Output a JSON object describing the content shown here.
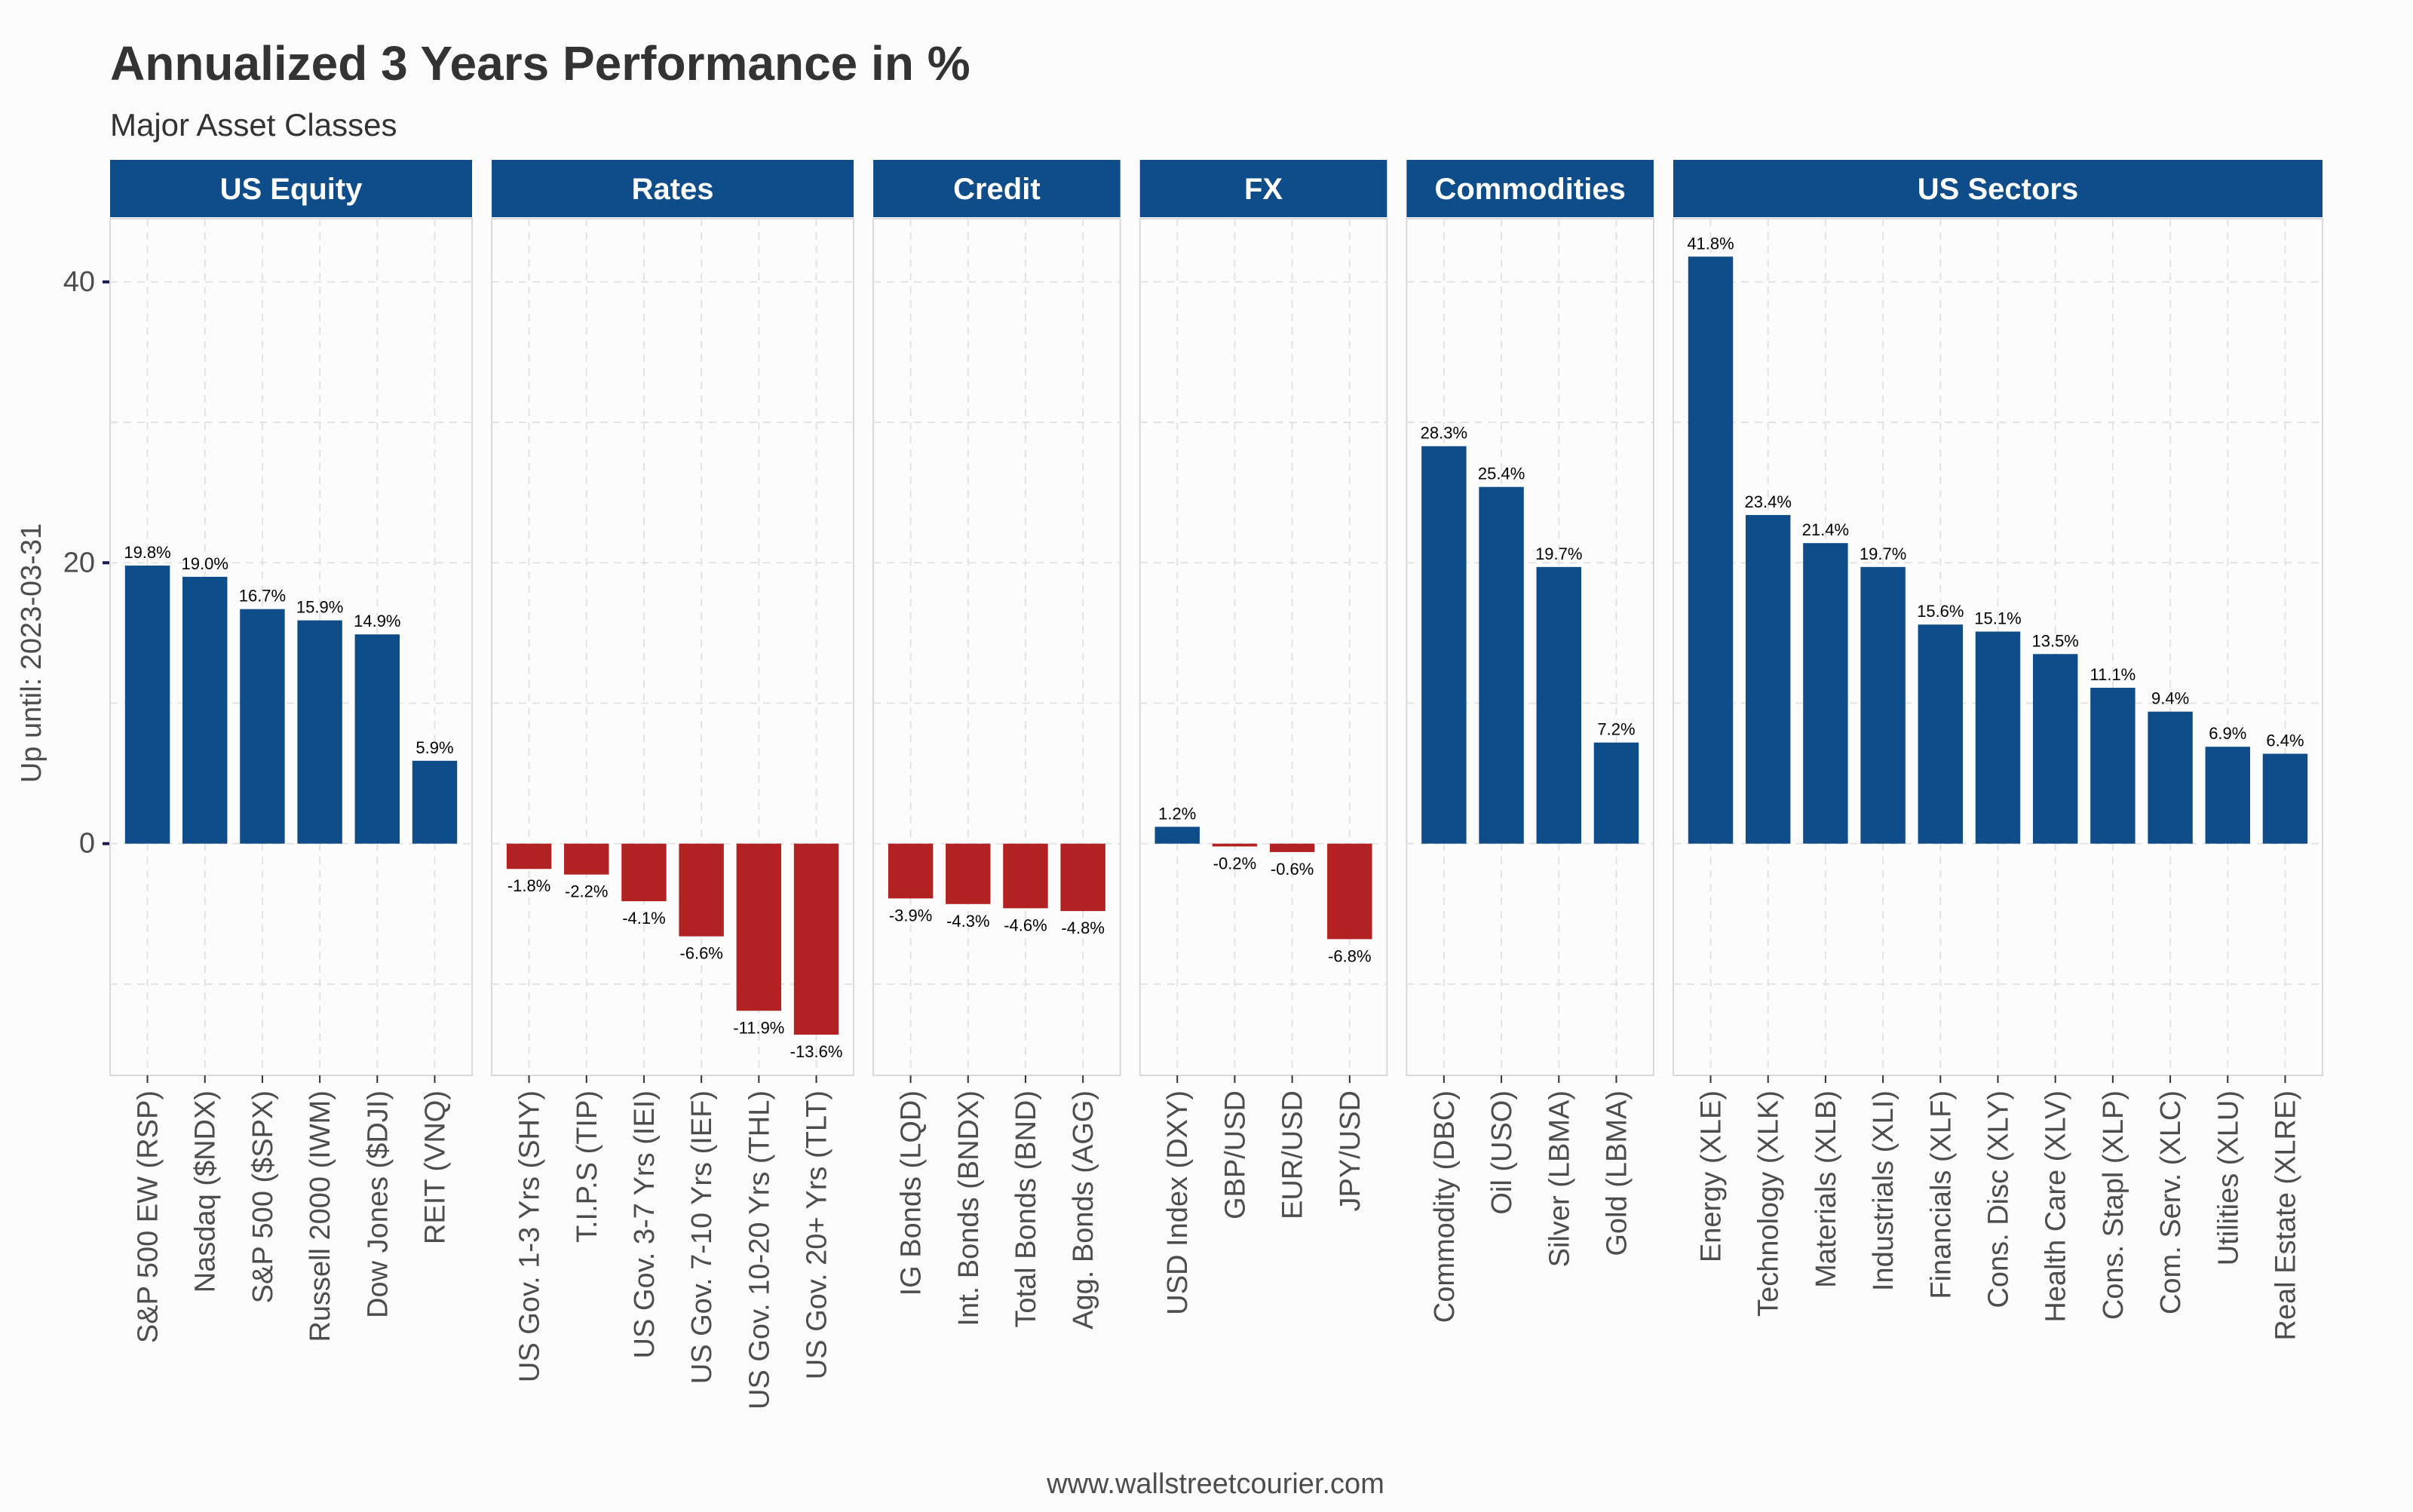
{
  "colors": {
    "positive": "#0f4c8a",
    "negative": "#b22222",
    "strip": "#0f4c8a",
    "text": "#333333",
    "grid": "#e3e3e3",
    "background": "#fcfcfc"
  },
  "footer": {
    "source": "www.wallstreetcourier.com"
  },
  "chart_data": {
    "type": "bar",
    "title": "Annualized 3 Years Performance in %",
    "subtitle": "Major Asset Classes",
    "ylabel": "Up until: 2023-03-31",
    "xlabel": "",
    "ylim": [
      -16.5,
      44.5
    ],
    "yticks": [
      0,
      20,
      40
    ],
    "grid": true,
    "value_suffix": "%",
    "facets": [
      {
        "name": "US Equity",
        "categories": [
          "S&P 500 EW (RSP)",
          "Nasdaq ($NDX)",
          "S&P 500 ($SPX)",
          "Russell 2000 (IWM)",
          "Dow Jones ($DJI)",
          "REIT (VNQ)"
        ],
        "values": [
          19.8,
          19.0,
          16.7,
          15.9,
          14.9,
          5.9
        ]
      },
      {
        "name": "Rates",
        "categories": [
          "US Gov. 1-3 Yrs (SHY)",
          "T.I.P.S (TIP)",
          "US Gov. 3-7 Yrs (IEI)",
          "US Gov. 7-10 Yrs (IEF)",
          "US Gov. 10-20 Yrs (THL)",
          "US Gov. 20+ Yrs (TLT)"
        ],
        "values": [
          -1.8,
          -2.2,
          -4.1,
          -6.6,
          -11.9,
          -13.6
        ]
      },
      {
        "name": "Credit",
        "categories": [
          "IG Bonds (LQD)",
          "Int. Bonds (BNDX)",
          "Total Bonds (BND)",
          "Agg. Bonds (AGG)"
        ],
        "values": [
          -3.9,
          -4.3,
          -4.6,
          -4.8
        ]
      },
      {
        "name": "FX",
        "categories": [
          "USD Index (DXY)",
          "GBP/USD",
          "EUR/USD",
          "JPY/USD"
        ],
        "values": [
          1.2,
          -0.2,
          -0.6,
          -6.8
        ]
      },
      {
        "name": "Commodities",
        "categories": [
          "Commodity (DBC)",
          "Oil (USO)",
          "Silver (LBMA)",
          "Gold (LBMA)"
        ],
        "values": [
          28.3,
          25.4,
          19.7,
          7.2
        ]
      },
      {
        "name": "US Sectors",
        "categories": [
          "Energy (XLE)",
          "Technology (XLK)",
          "Materials (XLB)",
          "Industrials (XLI)",
          "Financials (XLF)",
          "Cons. Disc (XLY)",
          "Health Care (XLV)",
          "Cons. Stapl (XLP)",
          "Com. Serv. (XLC)",
          "Utilities (XLU)",
          "Real Estate (XLRE)"
        ],
        "values": [
          41.8,
          23.4,
          21.4,
          19.7,
          15.6,
          15.1,
          13.5,
          11.1,
          9.4,
          6.9,
          6.4
        ]
      }
    ]
  }
}
